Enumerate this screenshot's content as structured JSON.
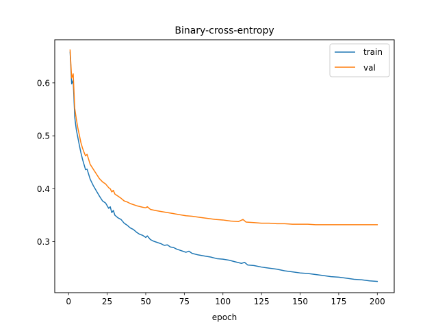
{
  "chart_data": {
    "type": "line",
    "title": "Binary-cross-entropy",
    "xlabel": "epoch",
    "ylabel": "",
    "xlim": [
      -8.95,
      210.95
    ],
    "ylim": [
      0.2037,
      0.6814
    ],
    "xticks": [
      0,
      25,
      50,
      75,
      100,
      125,
      150,
      175,
      200
    ],
    "yticks": [
      0.3,
      0.4,
      0.5,
      0.6
    ],
    "ytick_labels": [
      "0.3",
      "0.4",
      "0.5",
      "0.6"
    ],
    "grid": false,
    "legend_position": "top-right",
    "series": [
      {
        "name": "train",
        "color": "#1f77b4",
        "points": [
          [
            1,
            0.658
          ],
          [
            2,
            0.598
          ],
          [
            3,
            0.605
          ],
          [
            4,
            0.535
          ],
          [
            5,
            0.512
          ],
          [
            6,
            0.497
          ],
          [
            7,
            0.482
          ],
          [
            8,
            0.468
          ],
          [
            9,
            0.456
          ],
          [
            10,
            0.446
          ],
          [
            11,
            0.436
          ],
          [
            12,
            0.437
          ],
          [
            14,
            0.418
          ],
          [
            16,
            0.406
          ],
          [
            18,
            0.396
          ],
          [
            20,
            0.386
          ],
          [
            22,
            0.377
          ],
          [
            24,
            0.373
          ],
          [
            26,
            0.363
          ],
          [
            27,
            0.366
          ],
          [
            28,
            0.355
          ],
          [
            29,
            0.359
          ],
          [
            30,
            0.35
          ],
          [
            32,
            0.345
          ],
          [
            34,
            0.342
          ],
          [
            36,
            0.335
          ],
          [
            38,
            0.331
          ],
          [
            40,
            0.326
          ],
          [
            42,
            0.323
          ],
          [
            44,
            0.318
          ],
          [
            46,
            0.314
          ],
          [
            48,
            0.312
          ],
          [
            50,
            0.308
          ],
          [
            51,
            0.311
          ],
          [
            53,
            0.304
          ],
          [
            55,
            0.301
          ],
          [
            57,
            0.299
          ],
          [
            60,
            0.296
          ],
          [
            62,
            0.293
          ],
          [
            64,
            0.294
          ],
          [
            66,
            0.29
          ],
          [
            68,
            0.289
          ],
          [
            70,
            0.286
          ],
          [
            72,
            0.284
          ],
          [
            74,
            0.282
          ],
          [
            76,
            0.28
          ],
          [
            78,
            0.282
          ],
          [
            80,
            0.278
          ],
          [
            84,
            0.275
          ],
          [
            88,
            0.273
          ],
          [
            92,
            0.271
          ],
          [
            96,
            0.268
          ],
          [
            100,
            0.267
          ],
          [
            104,
            0.265
          ],
          [
            108,
            0.262
          ],
          [
            112,
            0.259
          ],
          [
            114,
            0.261
          ],
          [
            116,
            0.256
          ],
          [
            120,
            0.255
          ],
          [
            125,
            0.252
          ],
          [
            130,
            0.25
          ],
          [
            135,
            0.248
          ],
          [
            140,
            0.245
          ],
          [
            145,
            0.243
          ],
          [
            150,
            0.241
          ],
          [
            155,
            0.24
          ],
          [
            160,
            0.238
          ],
          [
            165,
            0.236
          ],
          [
            170,
            0.234
          ],
          [
            175,
            0.233
          ],
          [
            180,
            0.231
          ],
          [
            185,
            0.229
          ],
          [
            190,
            0.228
          ],
          [
            195,
            0.226
          ],
          [
            200,
            0.225
          ]
        ]
      },
      {
        "name": "val",
        "color": "#ff7f0e",
        "points": [
          [
            1,
            0.662
          ],
          [
            2,
            0.609
          ],
          [
            3,
            0.617
          ],
          [
            4,
            0.552
          ],
          [
            5,
            0.532
          ],
          [
            6,
            0.515
          ],
          [
            7,
            0.501
          ],
          [
            8,
            0.487
          ],
          [
            9,
            0.477
          ],
          [
            10,
            0.469
          ],
          [
            11,
            0.462
          ],
          [
            12,
            0.465
          ],
          [
            14,
            0.446
          ],
          [
            16,
            0.437
          ],
          [
            18,
            0.428
          ],
          [
            20,
            0.419
          ],
          [
            22,
            0.413
          ],
          [
            24,
            0.409
          ],
          [
            26,
            0.402
          ],
          [
            27,
            0.4
          ],
          [
            28,
            0.394
          ],
          [
            29,
            0.397
          ],
          [
            30,
            0.39
          ],
          [
            32,
            0.386
          ],
          [
            34,
            0.382
          ],
          [
            36,
            0.377
          ],
          [
            38,
            0.375
          ],
          [
            40,
            0.372
          ],
          [
            44,
            0.368
          ],
          [
            48,
            0.365
          ],
          [
            50,
            0.364
          ],
          [
            51,
            0.366
          ],
          [
            53,
            0.361
          ],
          [
            56,
            0.359
          ],
          [
            60,
            0.357
          ],
          [
            64,
            0.355
          ],
          [
            68,
            0.353
          ],
          [
            72,
            0.351
          ],
          [
            76,
            0.349
          ],
          [
            80,
            0.348
          ],
          [
            85,
            0.346
          ],
          [
            90,
            0.344
          ],
          [
            95,
            0.342
          ],
          [
            100,
            0.341
          ],
          [
            105,
            0.339
          ],
          [
            110,
            0.338
          ],
          [
            113,
            0.342
          ],
          [
            115,
            0.337
          ],
          [
            120,
            0.336
          ],
          [
            125,
            0.335
          ],
          [
            130,
            0.335
          ],
          [
            135,
            0.334
          ],
          [
            140,
            0.334
          ],
          [
            145,
            0.333
          ],
          [
            150,
            0.333
          ],
          [
            155,
            0.333
          ],
          [
            160,
            0.332
          ],
          [
            165,
            0.332
          ],
          [
            170,
            0.332
          ],
          [
            175,
            0.332
          ],
          [
            180,
            0.332
          ],
          [
            185,
            0.332
          ],
          [
            190,
            0.332
          ],
          [
            195,
            0.332
          ],
          [
            200,
            0.332
          ]
        ]
      }
    ]
  }
}
